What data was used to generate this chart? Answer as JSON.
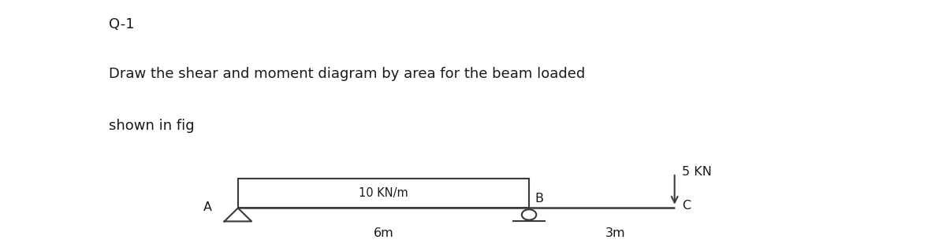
{
  "title_q": "Q-1",
  "description_line1": "Draw the shear and moment diagram by area for the beam loaded",
  "description_line2": "shown in fig",
  "bg_color": "#ffffff",
  "text_color": "#1a1a1a",
  "beam_color": "#3a3a3a",
  "label_A": "A",
  "label_B": "B",
  "label_C": "C",
  "udl_label": "10 KN/m",
  "point_load_label": "5 KN",
  "span_AB_label": "6m",
  "span_BC_label": "3m",
  "font_size_title": 13,
  "font_size_desc": 13,
  "font_size_diagram": 10.5
}
